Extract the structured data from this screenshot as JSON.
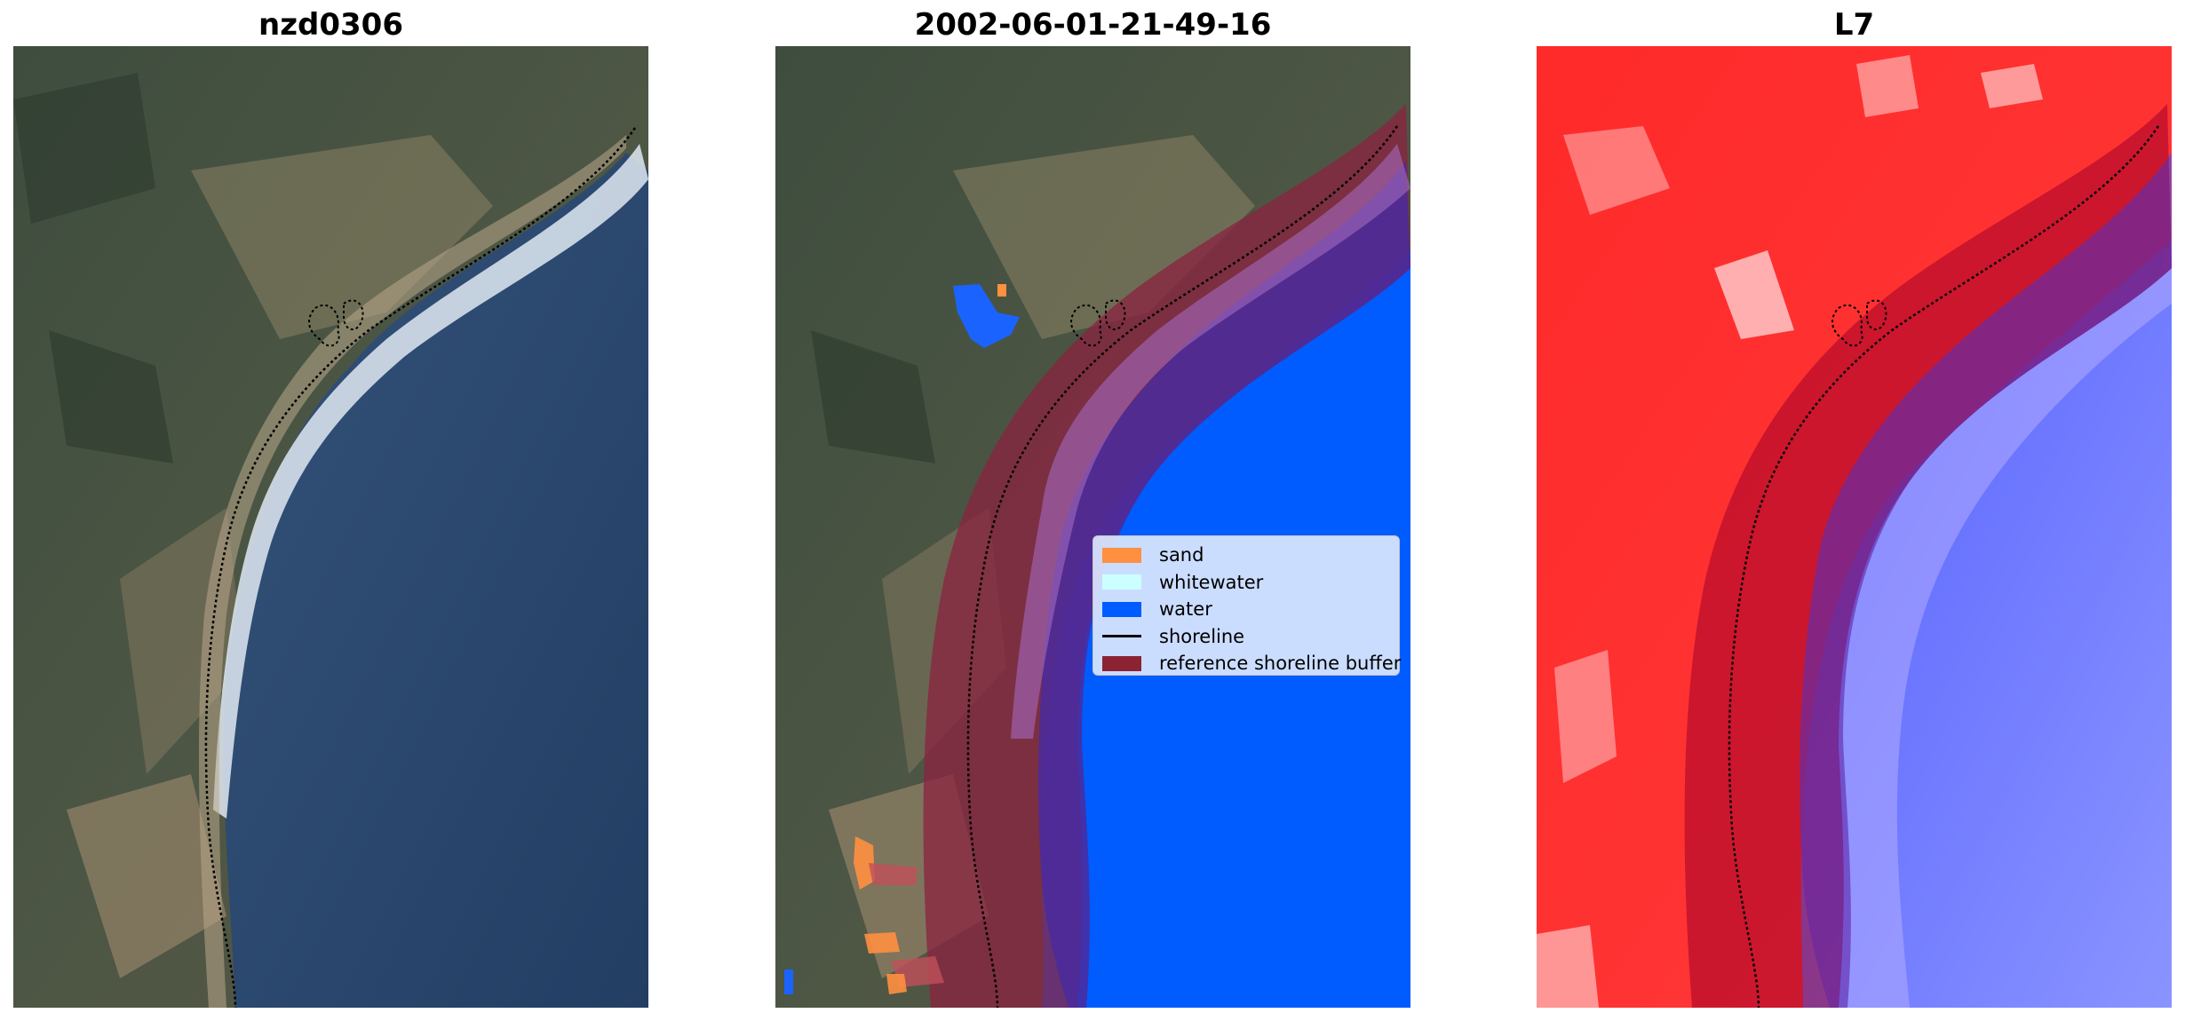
{
  "panels": [
    {
      "title": "nzd0306",
      "type": "rgb-image"
    },
    {
      "title": "2002-06-01-21-49-16",
      "type": "classified-image"
    },
    {
      "title": "L7",
      "type": "index-image"
    }
  ],
  "legend": {
    "items": [
      {
        "label": "sand",
        "color": "#ff9040",
        "kind": "patch"
      },
      {
        "label": "whitewater",
        "color": "#ccffff",
        "kind": "patch"
      },
      {
        "label": "water",
        "color": "#005cff",
        "kind": "patch"
      },
      {
        "label": "shoreline",
        "color": "#000000",
        "kind": "line"
      },
      {
        "label": "reference shoreline buffer",
        "color": "#8b2332",
        "kind": "patch"
      }
    ]
  },
  "colors": {
    "land_dark": "#3c4a3a",
    "land_light": "#a09076",
    "ocean": "#2b4a72",
    "index_positive": "#ff1a1a",
    "index_negative": "#6a78ff"
  }
}
